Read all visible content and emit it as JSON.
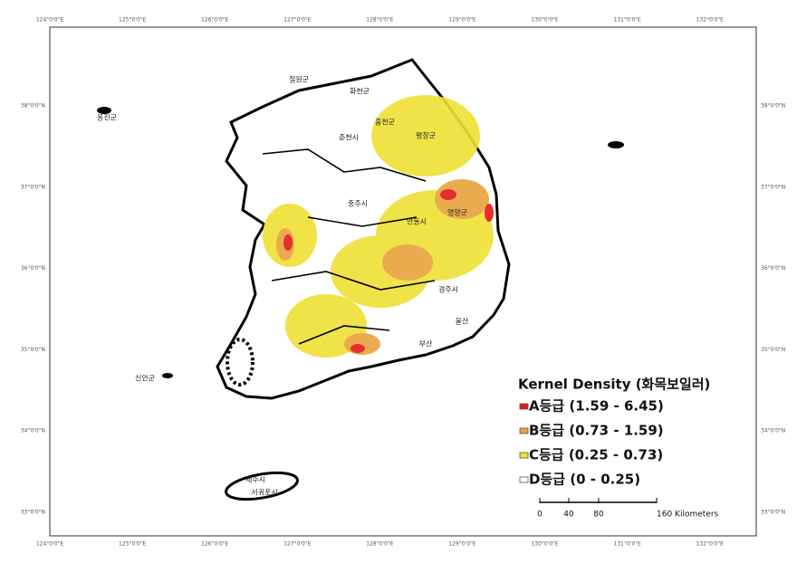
{
  "map": {
    "graticule": {
      "longitudes": [
        "124°0'0\"E",
        "125°0'0\"E",
        "126°0'0\"E",
        "127°0'0\"E",
        "128°0'0\"E",
        "129°0'0\"E",
        "130°0'0\"E",
        "131°0'0\"E",
        "132°0'0\"E"
      ],
      "latitudes": [
        "38°0'0\"N",
        "37°0'0\"N",
        "36°0'0\"N",
        "35°0'0\"N",
        "34°0'0\"N",
        "33°0'0\"N"
      ]
    },
    "places": [
      "화천군",
      "춘천시",
      "철원군",
      "홍천군",
      "평창군",
      "충주시",
      "안동시",
      "영양군",
      "경주시",
      "울산",
      "부산",
      "옹진군",
      "신안군",
      "제주시",
      "서귀포시"
    ],
    "legend": {
      "title": "Kernel Density (화목보일러)",
      "items": [
        "A등급 (1.59 - 6.45)",
        "B등급 (0.73 - 1.59)",
        "C등급 (0.25 - 0.73)",
        "D등급 (0 - 0.25)"
      ],
      "colors": [
        "#e31a1c",
        "#e8a33c",
        "#eee135",
        "#ffffff"
      ]
    },
    "scale_bar": {
      "labels": [
        "0",
        "40",
        "80",
        "160 Kilometers"
      ]
    }
  }
}
